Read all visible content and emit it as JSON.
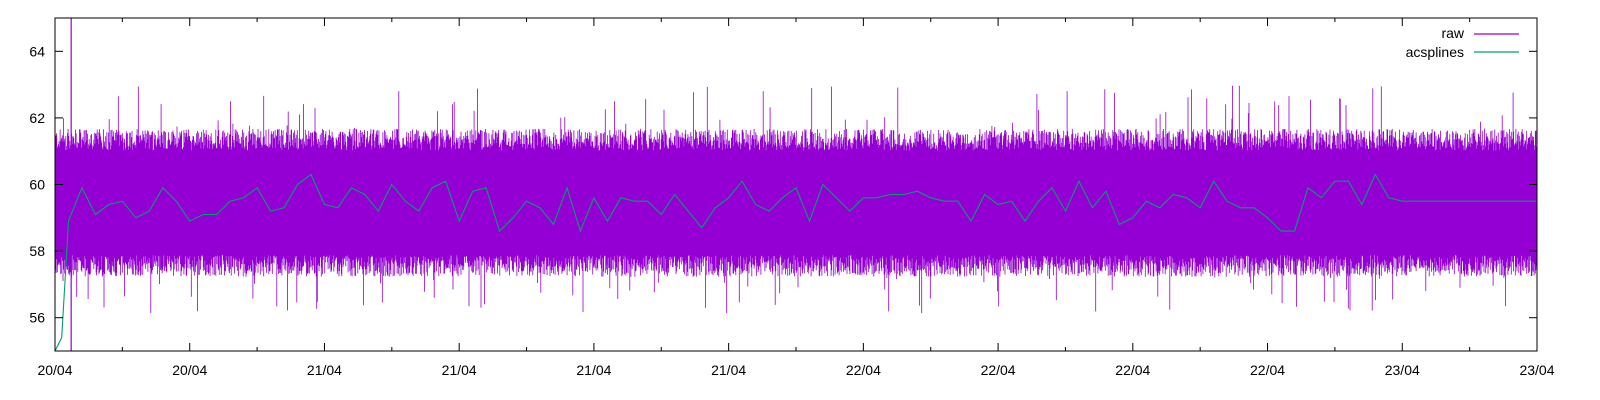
{
  "chart_data": {
    "type": "line",
    "title": "",
    "xlabel": "",
    "ylabel": "",
    "ylim": [
      55,
      65
    ],
    "yticks": [
      56,
      58,
      60,
      62,
      64
    ],
    "xlim": [
      0,
      11
    ],
    "xticks": [
      {
        "x": 0,
        "label": "20/04"
      },
      {
        "x": 1,
        "label": "20/04"
      },
      {
        "x": 2,
        "label": "21/04"
      },
      {
        "x": 3,
        "label": "21/04"
      },
      {
        "x": 4,
        "label": "21/04"
      },
      {
        "x": 5,
        "label": "21/04"
      },
      {
        "x": 6,
        "label": "22/04"
      },
      {
        "x": 7,
        "label": "22/04"
      },
      {
        "x": 8,
        "label": "22/04"
      },
      {
        "x": 9,
        "label": "22/04"
      },
      {
        "x": 10,
        "label": "23/04"
      },
      {
        "x": 11,
        "label": "23/04"
      }
    ],
    "grid": false,
    "legend_position": "top-right",
    "series": [
      {
        "name": "raw",
        "color": "#9400d3",
        "style": "dense-noise",
        "band_low": 57.6,
        "band_high": 61.3,
        "spike_low": 56.1,
        "spike_high": 63.0,
        "initial_spike_x": 0.12,
        "initial_spike_max": 65
      },
      {
        "name": "acsplines",
        "color": "#009e73",
        "x": [
          0.0,
          0.05,
          0.1,
          0.2,
          0.3,
          0.4,
          0.5,
          0.6,
          0.7,
          0.8,
          0.9,
          1.0,
          1.1,
          1.2,
          1.3,
          1.4,
          1.5,
          1.6,
          1.7,
          1.8,
          1.9,
          2.0,
          2.1,
          2.2,
          2.3,
          2.4,
          2.5,
          2.6,
          2.7,
          2.8,
          2.9,
          3.0,
          3.1,
          3.2,
          3.3,
          3.4,
          3.5,
          3.6,
          3.7,
          3.8,
          3.9,
          4.0,
          4.1,
          4.2,
          4.3,
          4.4,
          4.5,
          4.6,
          4.7,
          4.8,
          4.9,
          5.0,
          5.1,
          5.2,
          5.3,
          5.4,
          5.5,
          5.6,
          5.7,
          5.8,
          5.9,
          6.0,
          6.1,
          6.2,
          6.3,
          6.4,
          6.5,
          6.6,
          6.7,
          6.8,
          6.9,
          7.0,
          7.1,
          7.2,
          7.3,
          7.4,
          7.5,
          7.6,
          7.7,
          7.8,
          7.9,
          8.0,
          8.1,
          8.2,
          8.3,
          8.4,
          8.5,
          8.6,
          8.7,
          8.8,
          8.9,
          9.0,
          9.1,
          9.2,
          9.3,
          9.4,
          9.5,
          9.6,
          9.7,
          9.8,
          9.9,
          10.0,
          10.1,
          10.2,
          10.3,
          10.4,
          10.5,
          10.6,
          10.7,
          10.8,
          10.9,
          11.0
        ],
        "values": [
          55.0,
          55.4,
          58.9,
          59.9,
          59.1,
          59.4,
          59.5,
          59.0,
          59.2,
          59.9,
          59.5,
          58.9,
          59.1,
          59.1,
          59.5,
          59.6,
          59.9,
          59.2,
          59.3,
          60.0,
          60.3,
          59.4,
          59.3,
          59.9,
          59.7,
          59.2,
          60.0,
          59.5,
          59.2,
          59.9,
          60.1,
          58.9,
          59.8,
          59.9,
          58.6,
          59.0,
          59.5,
          59.3,
          58.8,
          59.9,
          58.6,
          59.6,
          58.9,
          59.6,
          59.5,
          59.5,
          59.1,
          59.7,
          59.2,
          58.7,
          59.3,
          59.6,
          60.1,
          59.4,
          59.2,
          59.6,
          59.9,
          58.9,
          60.0,
          59.6,
          59.2,
          59.6,
          59.6,
          59.7,
          59.7,
          59.8,
          59.6,
          59.5,
          59.5,
          58.9,
          59.7,
          59.4,
          59.5,
          58.9,
          59.5,
          59.9,
          59.2,
          60.1,
          59.3,
          59.8,
          58.8,
          59.0,
          59.5,
          59.3,
          59.7,
          59.6,
          59.3,
          60.1,
          59.5,
          59.3,
          59.3,
          59.0,
          58.6,
          58.6,
          59.9,
          59.6,
          60.1,
          60.1,
          59.4,
          60.3,
          59.6,
          59.5,
          59.5,
          59.5,
          59.5,
          59.5,
          59.5,
          59.5,
          59.5,
          59.5,
          59.5,
          59.5
        ]
      }
    ]
  }
}
